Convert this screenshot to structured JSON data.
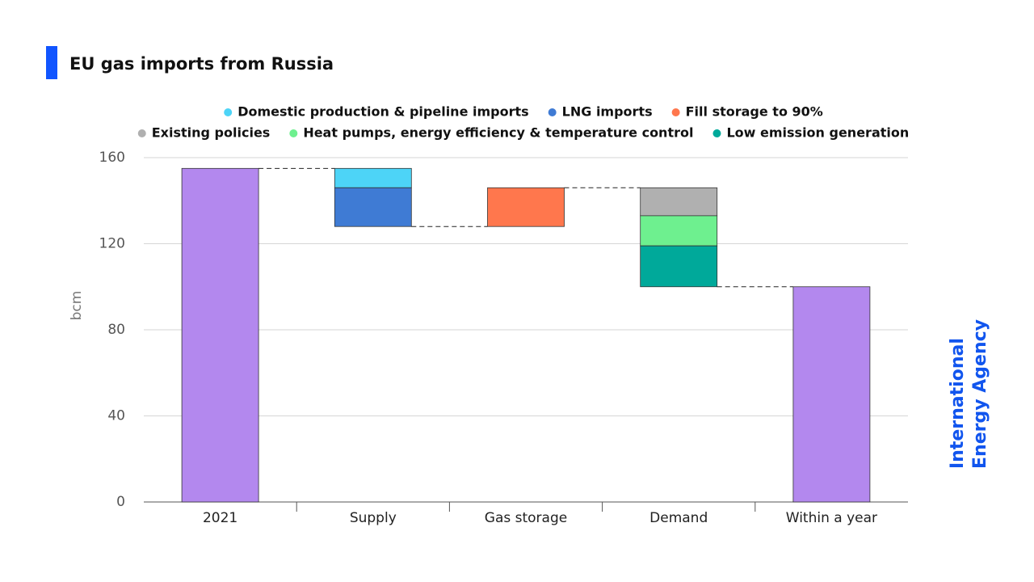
{
  "chart_data": {
    "type": "waterfall",
    "title": "EU gas imports from Russia",
    "y_label": "bcm",
    "categories": [
      "2021",
      "Supply",
      "Gas storage",
      "Demand",
      "Within a year"
    ],
    "values": [
      155,
      null,
      null,
      null,
      100
    ],
    "total_color": "#b388ee",
    "series": [
      {
        "name": "Domestic production & pipeline imports",
        "color": "#4dd4f7",
        "values": [
          null,
          -9,
          null,
          null,
          null
        ]
      },
      {
        "name": "LNG imports",
        "color": "#3f7bd4",
        "values": [
          null,
          -18,
          null,
          null,
          null
        ]
      },
      {
        "name": "Fill storage to 90%",
        "color": "#ff774d",
        "values": [
          null,
          null,
          18,
          null,
          null
        ]
      },
      {
        "name": "Existing policies",
        "color": "#b0b0b0",
        "values": [
          null,
          null,
          null,
          -13,
          null
        ]
      },
      {
        "name": "Heat pumps, energy efficiency & temperature control",
        "color": "#6ef08f",
        "values": [
          null,
          null,
          null,
          -14,
          null
        ]
      },
      {
        "name": "Low emission generation",
        "color": "#00a99a",
        "values": [
          null,
          null,
          null,
          -19,
          null
        ]
      }
    ],
    "ylim": [
      0,
      160
    ],
    "yticks": [
      0,
      40,
      80,
      120,
      160
    ],
    "grid": true
  },
  "logo": [
    "International",
    "Energy Agency"
  ]
}
